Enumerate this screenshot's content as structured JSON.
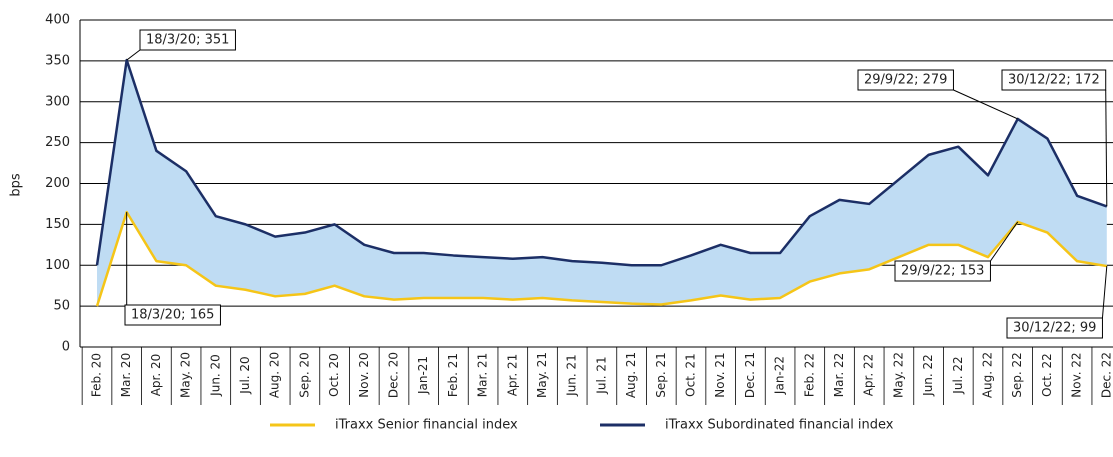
{
  "chart_data": {
    "type": "line",
    "y_label": "bps",
    "categories": [
      "Feb. 20",
      "Mar. 20",
      "Apr. 20",
      "May. 20",
      "Jun. 20",
      "Jul. 20",
      "Aug. 20",
      "Sep. 20",
      "Oct. 20",
      "Nov. 20",
      "Dec. 20",
      "Jan-21",
      "Feb. 21",
      "Mar. 21",
      "Apr. 21",
      "May. 21",
      "Jun. 21",
      "Jul. 21",
      "Aug. 21",
      "Sep. 21",
      "Oct. 21",
      "Nov. 21",
      "Dec. 21",
      "Jan-22",
      "Feb. 22",
      "Mar. 22",
      "Apr. 22",
      "May. 22",
      "Jun. 22",
      "Jul. 22",
      "Aug. 22",
      "Sep. 22",
      "Oct. 22",
      "Nov. 22",
      "Dec. 22"
    ],
    "series": [
      {
        "name": "iTraxx Senior financial index",
        "color": "#f5c518",
        "values": [
          50,
          165,
          105,
          100,
          75,
          70,
          62,
          65,
          75,
          62,
          58,
          60,
          60,
          60,
          58,
          60,
          57,
          55,
          53,
          52,
          57,
          63,
          58,
          60,
          80,
          90,
          95,
          110,
          125,
          125,
          110,
          153,
          140,
          105,
          99
        ],
        "annotations": [
          {
            "text": "18/3/20; 165",
            "x": "Mar. 20"
          },
          {
            "text": "29/9/22; 153",
            "x": "Sep. 22"
          },
          {
            "text": "30/12/22; 99",
            "x": "Dec. 22"
          }
        ]
      },
      {
        "name": "iTraxx Subordinated financial index",
        "color": "#1c2f66",
        "values": [
          100,
          351,
          240,
          215,
          160,
          150,
          135,
          140,
          150,
          125,
          115,
          115,
          112,
          110,
          108,
          110,
          105,
          103,
          100,
          100,
          112,
          125,
          115,
          115,
          160,
          180,
          175,
          205,
          235,
          245,
          210,
          279,
          255,
          185,
          172
        ],
        "annotations": [
          {
            "text": "18/3/20; 351",
            "x": "Mar. 20"
          },
          {
            "text": "29/9/22; 279",
            "x": "Sep. 22"
          },
          {
            "text": "30/12/22; 172",
            "x": "Dec. 22"
          }
        ]
      }
    ],
    "fill_between": "#bfdcf3",
    "ylim": [
      0,
      400
    ],
    "yticks": [
      0,
      50,
      100,
      150,
      200,
      250,
      300,
      350,
      400
    ],
    "grid": true
  }
}
